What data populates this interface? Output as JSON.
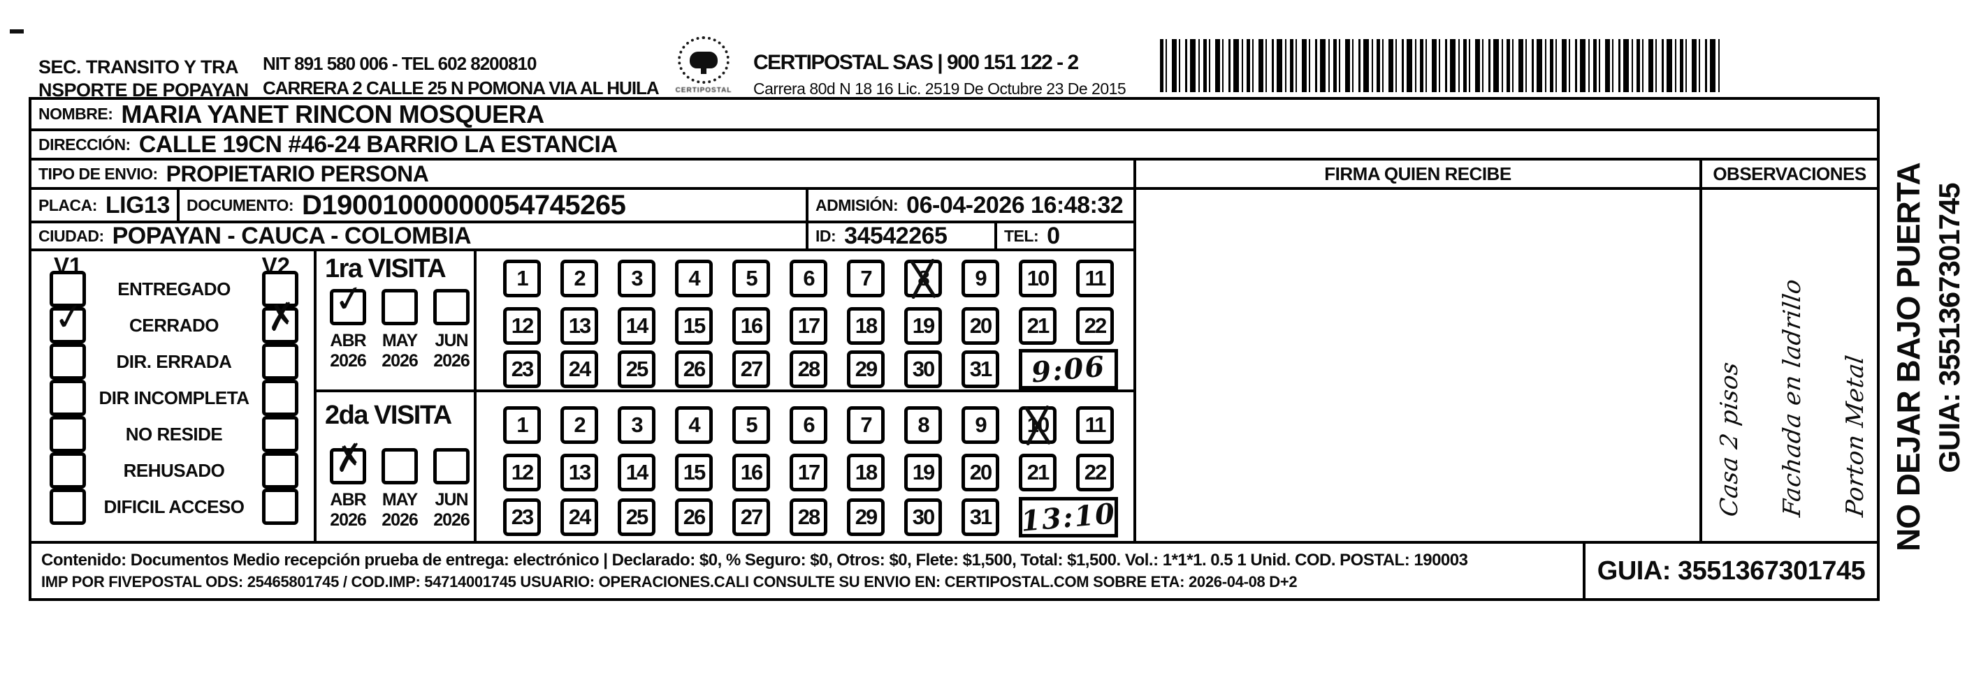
{
  "header": {
    "org_line1": "SEC. TRANSITO Y TRA",
    "org_line2": "NSPORTE DE POPAYAN",
    "nit_line": "NIT 891 580 006 - TEL 602 8200810",
    "address_line": "CARRERA 2 CALLE 25 N POMONA VIA AL HUILA",
    "logo_caption": "CERTIPOSTAL",
    "logo_subcaption": ".........",
    "company_line": "CERTIPOSTAL SAS | 900 151 122 - 2",
    "company_address": "Carrera 80d N 18 16  Lic. 2519 De Octubre 23 De 2015"
  },
  "recipient": {
    "nombre_label": "NOMBRE:",
    "nombre": "MARIA YANET RINCON MOSQUERA",
    "direccion_label": "DIRECCIÓN:",
    "direccion": "CALLE 19CN #46-24 BARRIO LA ESTANCIA",
    "tipo_label": "TIPO DE ENVIO:",
    "tipo": "PROPIETARIO PERSONA",
    "placa_label": "PLACA:",
    "placa": "LIG13",
    "documento_label": "DOCUMENTO:",
    "documento": "D19001000000054745265",
    "admision_label": "ADMISIÓN:",
    "admision": "06-04-2026 16:48:32",
    "ciudad_label": "CIUDAD:",
    "ciudad": "POPAYAN - CAUCA - COLOMBIA",
    "id_label": "ID:",
    "id": "34542265",
    "tel_label": "TEL:",
    "tel": "0"
  },
  "firma": {
    "header": "FIRMA QUIEN RECIBE"
  },
  "observaciones": {
    "header": "OBSERVACIONES",
    "handwriting": [
      "Casa 2 pisos",
      "Fachada en ladrillo",
      "Porton Metal"
    ]
  },
  "status_panel": {
    "v1_label": "V1",
    "v2_label": "V2",
    "options": [
      {
        "label": "ENTREGADO",
        "v1_mark": "",
        "v2_mark": ""
      },
      {
        "label": "CERRADO",
        "v1_mark": "✓",
        "v2_mark": "✗"
      },
      {
        "label": "DIR. ERRADA",
        "v1_mark": "",
        "v2_mark": ""
      },
      {
        "label": "DIR INCOMPLETA",
        "v1_mark": "",
        "v2_mark": ""
      },
      {
        "label": "NO RESIDE",
        "v1_mark": "",
        "v2_mark": ""
      },
      {
        "label": "REHUSADO",
        "v1_mark": "",
        "v2_mark": ""
      },
      {
        "label": "DIFICIL ACCESO",
        "v1_mark": "",
        "v2_mark": ""
      }
    ]
  },
  "visits": [
    {
      "title": "1ra VISITA",
      "months": [
        {
          "label": "ABR",
          "year": "2026",
          "mark": "✓"
        },
        {
          "label": "MAY",
          "year": "2026",
          "mark": ""
        },
        {
          "label": "JUN",
          "year": "2026",
          "mark": ""
        }
      ],
      "day_rows": [
        [
          "1",
          "2",
          "3",
          "4",
          "5",
          "6",
          "7",
          "8",
          "9",
          "10",
          "11"
        ],
        [
          "12",
          "13",
          "14",
          "15",
          "16",
          "17",
          "18",
          "19",
          "20",
          "21",
          "22"
        ],
        [
          "23",
          "24",
          "25",
          "26",
          "27",
          "28",
          "29",
          "30",
          "31"
        ]
      ],
      "crossed_day": "8",
      "time": "9:06"
    },
    {
      "title": "2da VISITA",
      "months": [
        {
          "label": "ABR",
          "year": "2026",
          "mark": "✗"
        },
        {
          "label": "MAY",
          "year": "2026",
          "mark": ""
        },
        {
          "label": "JUN",
          "year": "2026",
          "mark": ""
        }
      ],
      "day_rows": [
        [
          "1",
          "2",
          "3",
          "4",
          "5",
          "6",
          "7",
          "8",
          "9",
          "10",
          "11"
        ],
        [
          "12",
          "13",
          "14",
          "15",
          "16",
          "17",
          "18",
          "19",
          "20",
          "21",
          "22"
        ],
        [
          "23",
          "24",
          "25",
          "26",
          "27",
          "28",
          "29",
          "30",
          "31"
        ]
      ],
      "crossed_day": "10",
      "time": "13:10"
    }
  ],
  "footer": {
    "line1": "Contenido: Documentos Medio recepción prueba de entrega: electrónico | Declarado: $0, % Seguro: $0, Otros: $0, Flete: $1,500, Total: $1,500. Vol.: 1*1*1. 0.5  1 Unid. COD. POSTAL: 190003",
    "line2": "IMP POR FIVEPOSTAL ODS: 25465801745 / COD.IMP: 54714001745 USUARIO: OPERACIONES.CALI CONSULTE SU ENVIO EN: CERTIPOSTAL.COM SOBRE ETA: 2026-04-08 D+2",
    "guia": "GUIA: 3551367301745"
  },
  "side_notice": {
    "line1": "NO DEJAR BAJO PUERTA",
    "line2": "GUIA: 3551367301745"
  }
}
